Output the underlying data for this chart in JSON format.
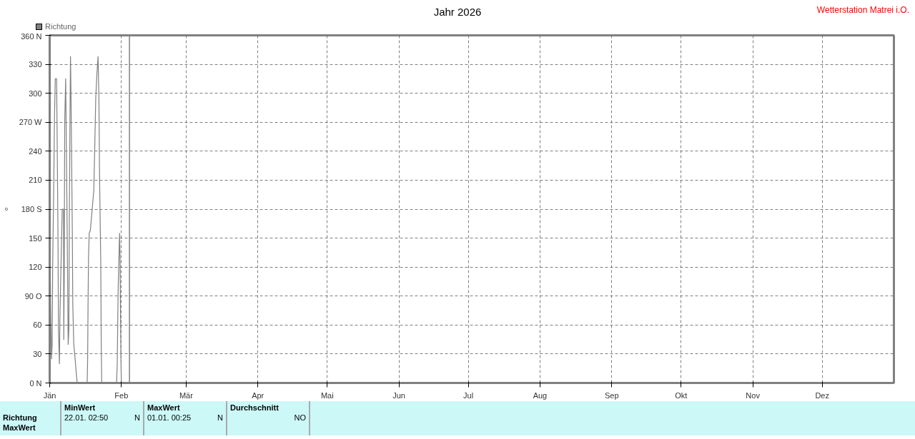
{
  "chart_data": {
    "type": "line",
    "title": "Jahr 2026",
    "ylabel": "°",
    "annotations": [
      "Wetterstation Matrei i.O.",
      "Richtung",
      "MaxWert",
      "MinWert",
      "22.01.  02:50",
      "N",
      "MaxWert",
      "01.01.  00:25",
      "N",
      "Durchschnitt",
      "NO"
    ],
    "x": [
      "2026-01-01T05:00",
      "2026-01-01T10:00",
      "2026-01-01T19:00",
      "2026-01-02T02:00",
      "2026-01-02T07:00",
      "2026-01-02T17:00",
      "2026-01-03T02:00",
      "2026-01-03T10:00",
      "2026-01-04T00:00",
      "2026-01-04T05:00",
      "2026-01-04T14:00",
      "2026-01-04T19:00",
      "2026-01-05T05:00",
      "2026-01-05T10:00",
      "2026-01-05T19:00",
      "2026-01-06T05:00",
      "2026-01-06T10:00",
      "2026-01-07T00:00",
      "2026-01-07T02:00",
      "2026-01-07T07:00",
      "2026-01-07T12:00",
      "2026-01-07T22:00",
      "2026-01-08T02:00",
      "2026-01-08T10:00",
      "2026-01-08T17:00",
      "2026-01-09T00:00",
      "2026-01-09T07:00",
      "2026-01-09T12:00",
      "2026-01-09T19:00",
      "2026-01-10T00:00",
      "2026-01-10T05:00",
      "2026-01-10T12:00",
      "2026-01-10T19:00",
      "2026-01-11T00:00",
      "2026-01-11T10:00",
      "2026-01-12T00:00",
      "2026-01-12T12:00",
      "2026-01-12T22:00",
      "2026-01-17T05:00",
      "2026-01-17T10:00",
      "2026-01-17T14:00",
      "2026-01-17T19:00",
      "2026-01-18T02:00",
      "2026-01-18T14:00",
      "2026-01-19T05:00",
      "2026-01-20T02:00",
      "2026-01-20T12:00",
      "2026-01-20T22:00",
      "2026-01-21T10:00",
      "2026-01-21T22:00",
      "2026-01-22T07:00",
      "2026-01-22T14:00",
      "2026-01-23T02:00",
      "2026-01-23T07:00",
      "2026-01-23T12:00",
      "2026-01-29T22:00",
      "2026-01-30T05:00",
      "2026-01-30T14:00",
      "2026-01-31T00:00",
      "2026-01-31T05:00",
      "2026-01-31T10:00",
      "2026-01-31T19:00",
      "2026-02-01T00:00"
    ],
    "series": [
      {
        "name": "Richtung",
        "color": "#808080",
        "values": [
          130,
          80,
          25,
          40,
          120,
          195,
          275,
          315,
          315,
          260,
          155,
          55,
          20,
          65,
          110,
          155,
          180,
          180,
          45,
          110,
          270,
          315,
          275,
          195,
          120,
          40,
          55,
          170,
          280,
          338,
          300,
          230,
          155,
          80,
          40,
          25,
          10,
          0,
          0,
          25,
          80,
          130,
          155,
          158,
          175,
          200,
          245,
          295,
          320,
          338,
          295,
          210,
          125,
          40,
          0,
          0,
          20,
          95,
          135,
          155,
          130,
          25,
          0
        ]
      }
    ],
    "xlim": [
      "2026-01-01",
      "2027-01-01"
    ],
    "xticks": [
      {
        "value": "2026-01-01",
        "label": "Jän"
      },
      {
        "value": "2026-02-01",
        "label": "Feb"
      },
      {
        "value": "2026-03-01",
        "label": "Mär"
      },
      {
        "value": "2026-04-01",
        "label": "Apr"
      },
      {
        "value": "2026-05-01",
        "label": "Mai"
      },
      {
        "value": "2026-06-01",
        "label": "Jun"
      },
      {
        "value": "2026-07-01",
        "label": "Jul"
      },
      {
        "value": "2026-08-01",
        "label": "Aug"
      },
      {
        "value": "2026-09-01",
        "label": "Sep"
      },
      {
        "value": "2026-10-01",
        "label": "Okt"
      },
      {
        "value": "2026-11-01",
        "label": "Nov"
      },
      {
        "value": "2026-12-01",
        "label": "Dez"
      }
    ],
    "ylim": [
      0,
      360
    ],
    "yticks": [
      {
        "value": 0,
        "label": "0 N"
      },
      30,
      60,
      {
        "value": 90,
        "label": "90 O"
      },
      120,
      150,
      {
        "value": 180,
        "label": "180 S"
      },
      210,
      240,
      {
        "value": 270,
        "label": "270 W"
      },
      300,
      330,
      {
        "value": 360,
        "label": "360 N"
      }
    ],
    "ref_lines": [
      {
        "axis": "x",
        "value": "2026-02-04T12:00",
        "color": "#808080"
      }
    ],
    "grid": true,
    "legend": "top left",
    "marker": "none",
    "line_style": "solid"
  }
}
